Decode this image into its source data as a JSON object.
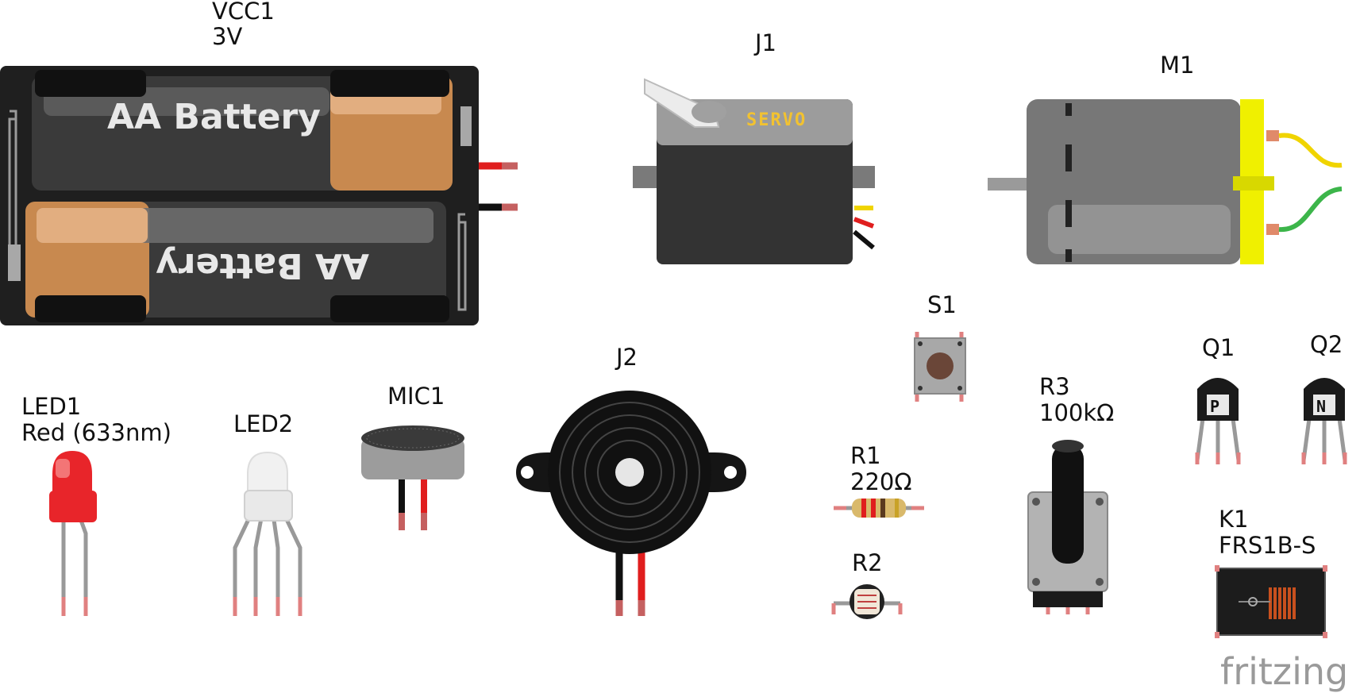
{
  "parts": {
    "vcc1": {
      "ref": "VCC1",
      "value": "3V",
      "cell_label": "AA Battery"
    },
    "j1": {
      "ref": "J1",
      "brand": "SERVO"
    },
    "m1": {
      "ref": "M1"
    },
    "s1": {
      "ref": "S1"
    },
    "j2": {
      "ref": "J2"
    },
    "r1": {
      "ref": "R1",
      "value": "220Ω"
    },
    "r2": {
      "ref": "R2"
    },
    "r3": {
      "ref": "R3",
      "value": "100kΩ"
    },
    "q1": {
      "ref": "Q1",
      "mark": "P"
    },
    "q2": {
      "ref": "Q2",
      "mark": "N"
    },
    "k1": {
      "ref": "K1",
      "value": "FRS1B-S"
    },
    "led1": {
      "ref": "LED1",
      "value": "Red (633nm)"
    },
    "led2": {
      "ref": "LED2"
    },
    "mic1": {
      "ref": "MIC1"
    }
  },
  "logo": "fritzing",
  "colors": {
    "battery_holder": "#1f1f1f",
    "battery_copper": "#c8894f",
    "servo_label": "#f2c230",
    "motor_cap": "#f0f000",
    "led_red": "#e8252a",
    "wire_red": "#e01e1e",
    "wire_yellow": "#f0d400",
    "wire_green": "#3cb54a"
  }
}
